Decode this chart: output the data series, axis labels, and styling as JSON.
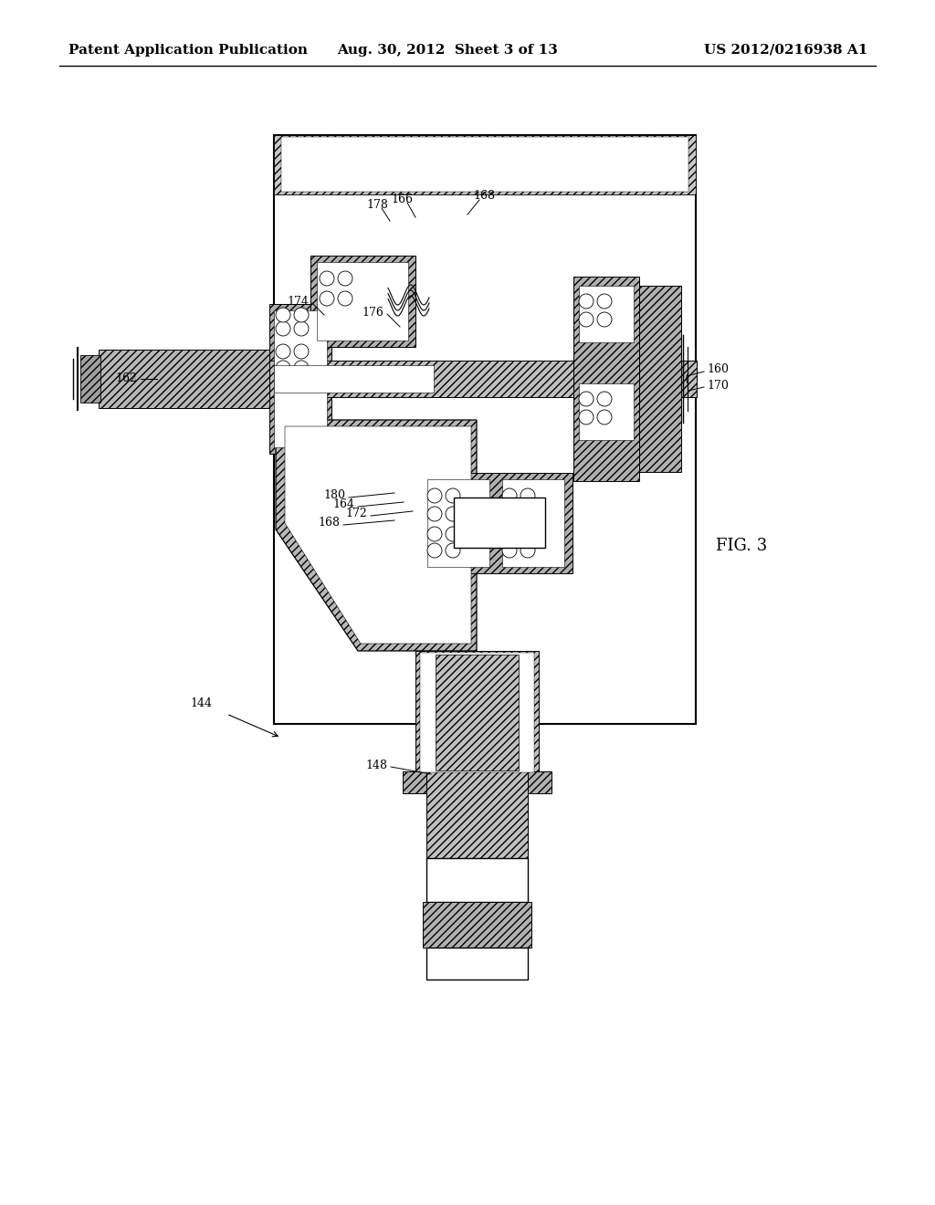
{
  "header_left": "Patent Application Publication",
  "header_mid": "Aug. 30, 2012  Sheet 3 of 13",
  "header_right": "US 2012/0216938 A1",
  "fig_label": "FIG. 3",
  "background": "#ffffff",
  "text_color": "#000000",
  "header_fontsize": 11,
  "label_fontsize": 9,
  "fig_label_fontsize": 13,
  "page_width": 10.24,
  "page_height": 13.2
}
